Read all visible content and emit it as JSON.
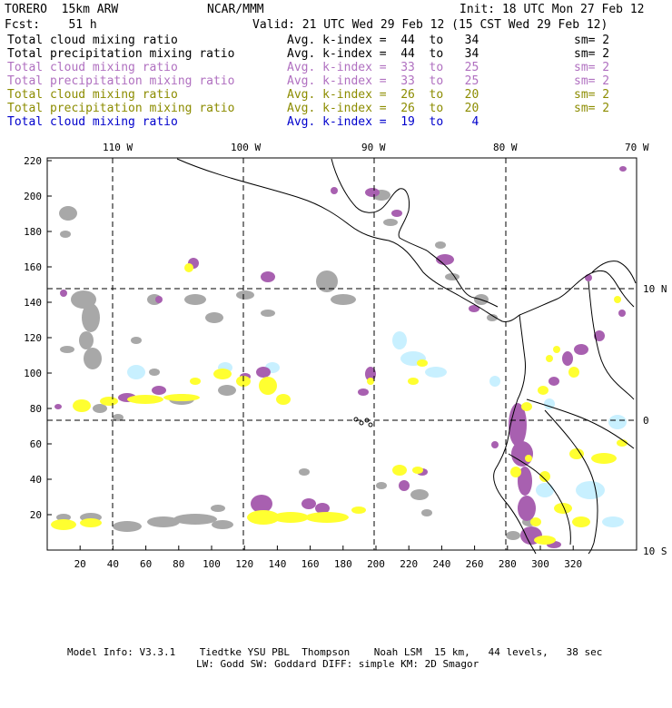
{
  "header": {
    "model": "TORERO  15km ARW",
    "org": "NCAR/MMM",
    "init": "Init: 18 UTC Mon 27 Feb 12",
    "fcst": "Fcst:    51 h",
    "valid": "Valid: 21 UTC Wed 29 Feb 12 (15 CST Wed 29 Feb 12)"
  },
  "legend": [
    {
      "field": "Total cloud mixing ratio",
      "kindex": "Avg. k-index =  44  to   34",
      "sm": "sm= 2",
      "color": "#000000"
    },
    {
      "field": "Total precipitation mixing ratio",
      "kindex": "Avg. k-index =  44  to   34",
      "sm": "sm= 2",
      "color": "#000000"
    },
    {
      "field": "Total cloud mixing ratio",
      "kindex": "Avg. k-index =  33  to   25",
      "sm": "sm= 2",
      "color": "#b070c0"
    },
    {
      "field": "Total precipitation mixing ratio",
      "kindex": "Avg. k-index =  33  to   25",
      "sm": "sm= 2",
      "color": "#b070c0"
    },
    {
      "field": "Total cloud mixing ratio",
      "kindex": "Avg. k-index =  26  to   20",
      "sm": "sm= 2",
      "color": "#8c8c00"
    },
    {
      "field": "Total precipitation mixing ratio",
      "kindex": "Avg. k-index =  26  to   20",
      "sm": "sm= 2",
      "color": "#8c8c00"
    },
    {
      "field": "Total cloud mixing ratio",
      "kindex": "Avg. k-index =  19  to    4",
      "sm": "",
      "color": "#0000cc"
    }
  ],
  "map": {
    "lon_labels": [
      "110 W",
      "100 W",
      "90 W",
      "80 W",
      "70 W"
    ],
    "lat_labels": [
      "10 N",
      "0",
      "10 S"
    ],
    "y_ticks": [
      "220",
      "200",
      "180",
      "160",
      "140",
      "120",
      "100",
      "80",
      "60",
      "40",
      "20"
    ],
    "x_ticks": [
      "20",
      "40",
      "60",
      "80",
      "100",
      "120",
      "140",
      "160",
      "180",
      "200",
      "220",
      "240",
      "260",
      "280",
      "300",
      "320"
    ],
    "colors": {
      "gray": "#a8a8a8",
      "purple": "#a860b0",
      "yellow": "#ffff30",
      "cyan": "#c8f0ff"
    }
  },
  "footer": {
    "line1": "Model Info: V3.3.1    Tiedtke YSU PBL  Thompson    Noah LSM  15 km,   44 levels,   38 sec",
    "line2": "LW: Godd SW: Goddard DIFF: simple KM: 2D Smagor"
  }
}
